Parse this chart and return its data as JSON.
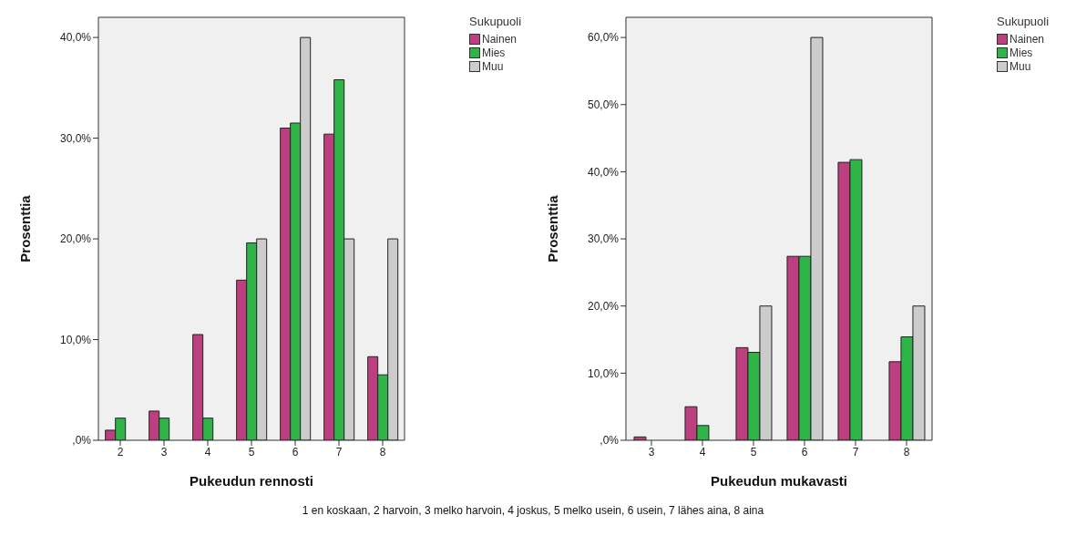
{
  "chart_data": [
    {
      "type": "bar",
      "xlabel": "Pukeudun rennosti",
      "ylabel": "Prosenttia",
      "legend_title": "Sukupuoli",
      "legend": "top right",
      "categories": [
        "2",
        "3",
        "4",
        "5",
        "6",
        "7",
        "8"
      ],
      "series": [
        {
          "name": "Nainen",
          "color": "#bc3f7f",
          "values": [
            1.0,
            2.9,
            10.5,
            15.9,
            31.0,
            30.4,
            8.3
          ]
        },
        {
          "name": "Mies",
          "color": "#2fb547",
          "values": [
            2.2,
            2.2,
            2.2,
            19.6,
            31.5,
            35.8,
            6.5
          ]
        },
        {
          "name": "Muu",
          "color": "#cccccc",
          "values": [
            null,
            null,
            null,
            20,
            40,
            20,
            20
          ]
        }
      ],
      "ylim": [
        0,
        42
      ],
      "yticks": [
        {
          "value": 0,
          "label": ",0%"
        },
        {
          "value": 10,
          "label": "10,0%"
        },
        {
          "value": 20,
          "label": "20,0%"
        },
        {
          "value": 30,
          "label": "30,0%"
        },
        {
          "value": 40,
          "label": "40,0%"
        }
      ],
      "annotations": [
        "1 en koskaan, 2 harvoin, 3 melko harvoin, 4 joskus, 5 melko usein, 6 usein, 7 lähes aina, 8 aina"
      ]
    },
    {
      "type": "bar",
      "xlabel": "Pukeudun mukavasti",
      "ylabel": "Prosenttia",
      "legend_title": "Sukupuoli",
      "legend": "top right",
      "categories": [
        "3",
        "4",
        "5",
        "6",
        "7",
        "8"
      ],
      "series": [
        {
          "name": "Nainen",
          "color": "#bc3f7f",
          "values": [
            0.5,
            5.0,
            13.8,
            27.4,
            41.4,
            11.7
          ]
        },
        {
          "name": "Mies",
          "color": "#2fb547",
          "values": [
            0,
            2.2,
            13.1,
            27.4,
            41.8,
            15.4
          ]
        },
        {
          "name": "Muu",
          "color": "#cccccc",
          "values": [
            0,
            0,
            20,
            60,
            0,
            20
          ]
        }
      ],
      "ylim": [
        0,
        63
      ],
      "yticks": [
        {
          "value": 0,
          "label": ",0%"
        },
        {
          "value": 10,
          "label": "10,0%"
        },
        {
          "value": 20,
          "label": "20,0%"
        },
        {
          "value": 30,
          "label": "30,0%"
        },
        {
          "value": 40,
          "label": "40,0%"
        },
        {
          "value": 50,
          "label": "50,0%"
        },
        {
          "value": 60,
          "label": "60,0%"
        }
      ]
    }
  ]
}
